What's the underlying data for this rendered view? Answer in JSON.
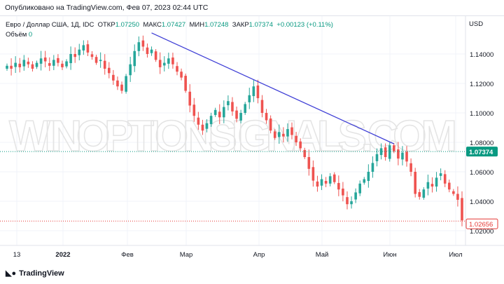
{
  "published": "Опубликовано на TradingView.com, Фев 07, 2023 02:44 UTC",
  "legend": {
    "symbol": "Евро / Доллар США, 1Д, IDC",
    "open_label": "ОТКР",
    "open": "1.07250",
    "high_label": "МАКС",
    "high": "1.07427",
    "low_label": "МИН",
    "low": "1.07248",
    "close_label": "ЗАКР",
    "close": "1.07374",
    "change": "+0.00123 (+0.11%)"
  },
  "volume": {
    "label": "Объём",
    "value": "0"
  },
  "watermark": "WINOPTIONSIGNALS.COM",
  "logo": "TradingView",
  "colors": {
    "up": "#26a69a",
    "down": "#ef5350",
    "trendline": "#3f3fd6",
    "current": "#089981",
    "last": "#e53935"
  },
  "chart_data": {
    "type": "candlestick",
    "currency": "USD",
    "ylim": [
      1.0155,
      1.1625
    ],
    "y_ticks": [
      "1.14000",
      "1.12000",
      "1.10000",
      "1.08000",
      "1.06000",
      "1.04000",
      "1.02000"
    ],
    "x_ticks": [
      "13",
      "2022",
      "Фев",
      "Мар",
      "Апр",
      "Май",
      "Июн",
      "Июл"
    ],
    "closes": [
      1.132,
      1.13,
      1.134,
      1.131,
      1.136,
      1.133,
      1.13,
      1.134,
      1.137,
      1.135,
      1.132,
      1.136,
      1.134,
      1.131,
      1.135,
      1.14,
      1.138,
      1.143,
      1.146,
      1.141,
      1.138,
      1.134,
      1.136,
      1.13,
      1.127,
      1.122,
      1.118,
      1.115,
      1.125,
      1.133,
      1.142,
      1.148,
      1.145,
      1.14,
      1.143,
      1.136,
      1.131,
      1.134,
      1.137,
      1.133,
      1.128,
      1.124,
      1.115,
      1.105,
      1.098,
      1.092,
      1.088,
      1.093,
      1.098,
      1.102,
      1.097,
      1.104,
      1.108,
      1.101,
      1.096,
      1.1,
      1.106,
      1.112,
      1.118,
      1.11,
      1.1,
      1.095,
      1.088,
      1.083,
      1.087,
      1.084,
      1.089,
      1.085,
      1.08,
      1.076,
      1.07,
      1.062,
      1.054,
      1.05,
      1.055,
      1.052,
      1.057,
      1.053,
      1.048,
      1.044,
      1.038,
      1.04,
      1.046,
      1.052,
      1.055,
      1.06,
      1.066,
      1.072,
      1.076,
      1.07,
      1.078,
      1.074,
      1.069,
      1.073,
      1.067,
      1.06,
      1.045,
      1.043,
      1.048,
      1.053,
      1.05,
      1.056,
      1.059,
      1.052,
      1.048,
      1.045,
      1.041,
      1.027
    ],
    "trendline": {
      "from": {
        "candle": 34,
        "price": 1.1543
      },
      "to": {
        "candle": 91,
        "price": 1.079
      }
    },
    "current_price": "1.07374",
    "last_price": "1.02656"
  }
}
